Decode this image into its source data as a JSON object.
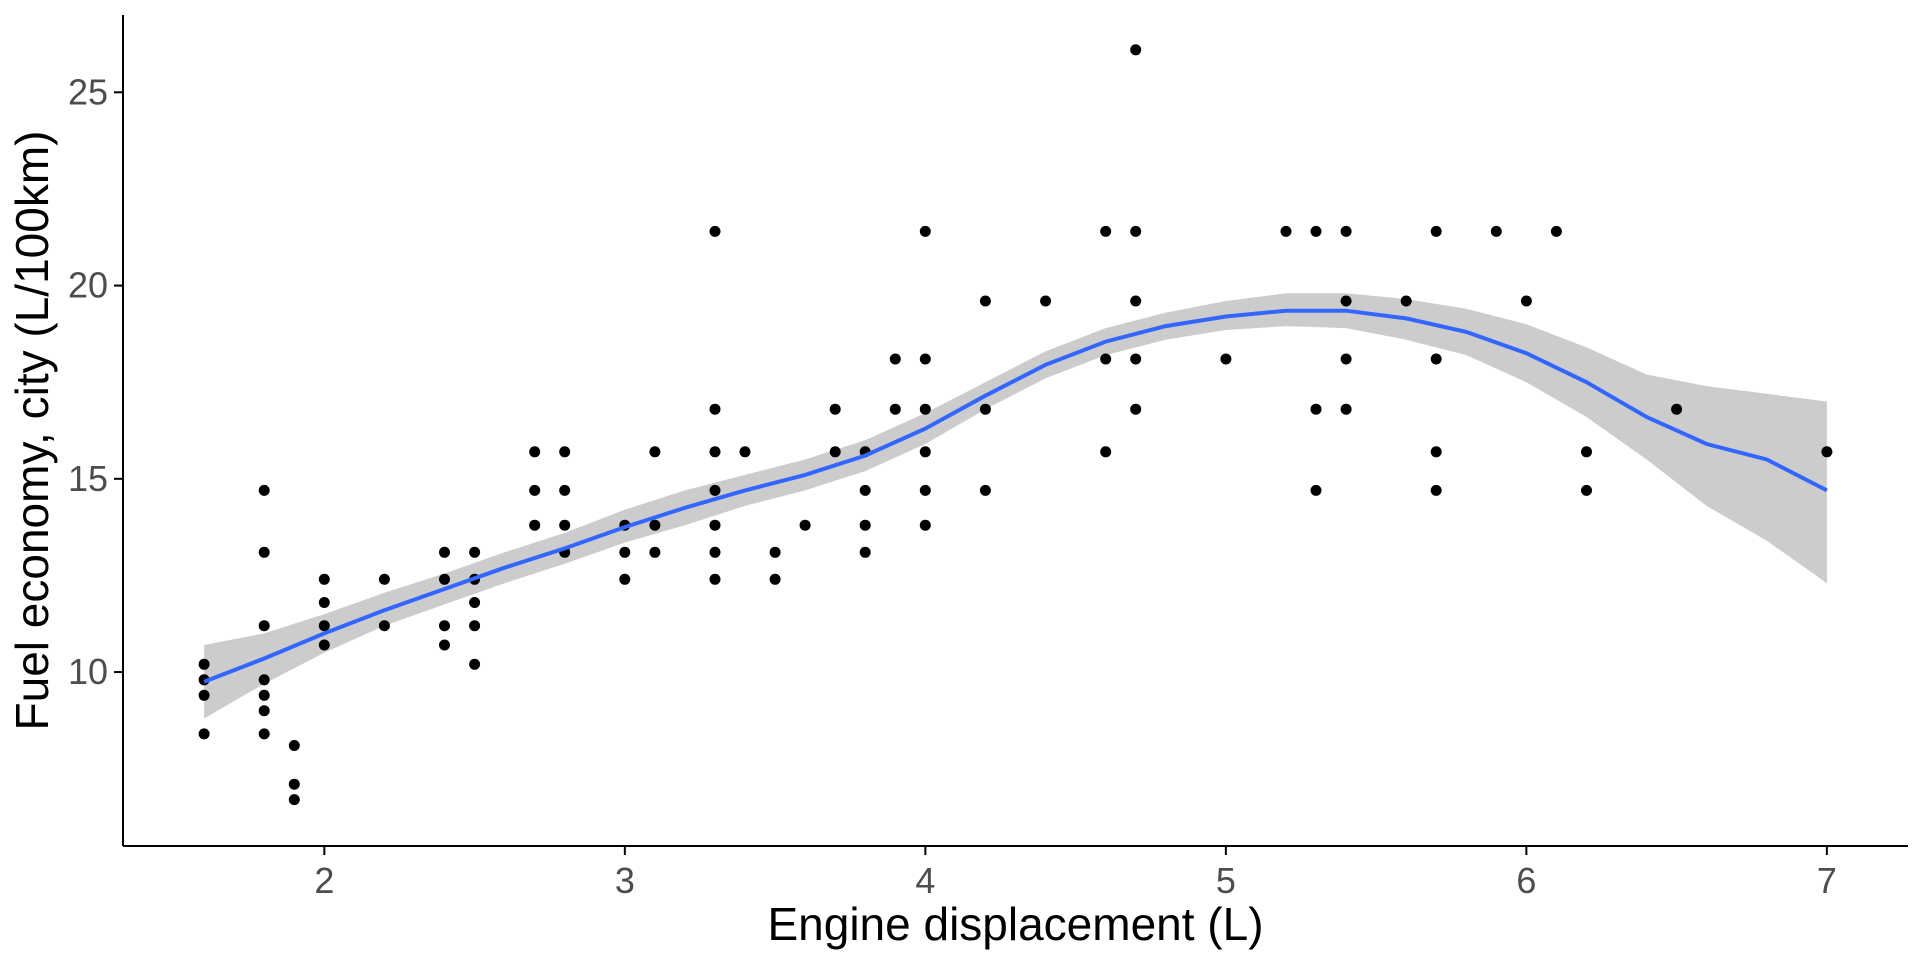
{
  "chart_data": {
    "type": "scatter",
    "title": "",
    "xlabel": "Engine displacement (L)",
    "ylabel": "Fuel economy, city (L/100km)",
    "xlim": [
      1.33,
      7.27
    ],
    "ylim": [
      5.5,
      27.0
    ],
    "x_ticks": [
      2,
      3,
      4,
      5,
      6,
      7
    ],
    "y_ticks": [
      10,
      15,
      20,
      25
    ],
    "grid": false,
    "legend": "none",
    "colors": {
      "points": "#000000",
      "smooth_line": "#3366FF",
      "ribbon": "#CCCCCC",
      "axis": "#000000",
      "tick_text": "#4D4D4D"
    },
    "points": [
      [
        1.6,
        8.4
      ],
      [
        1.6,
        9.4
      ],
      [
        1.6,
        9.8
      ],
      [
        1.6,
        10.2
      ],
      [
        1.8,
        8.4
      ],
      [
        1.8,
        9.0
      ],
      [
        1.8,
        9.4
      ],
      [
        1.8,
        9.8
      ],
      [
        1.8,
        11.2
      ],
      [
        1.8,
        13.1
      ],
      [
        1.8,
        14.7
      ],
      [
        1.9,
        6.7
      ],
      [
        1.9,
        7.1
      ],
      [
        1.9,
        8.1
      ],
      [
        2.0,
        10.7
      ],
      [
        2.0,
        11.2
      ],
      [
        2.0,
        11.8
      ],
      [
        2.0,
        12.4
      ],
      [
        2.2,
        11.2
      ],
      [
        2.2,
        12.4
      ],
      [
        2.4,
        10.7
      ],
      [
        2.4,
        11.2
      ],
      [
        2.4,
        12.4
      ],
      [
        2.4,
        13.1
      ],
      [
        2.5,
        10.2
      ],
      [
        2.5,
        11.2
      ],
      [
        2.5,
        11.8
      ],
      [
        2.5,
        12.4
      ],
      [
        2.5,
        13.1
      ],
      [
        2.7,
        13.8
      ],
      [
        2.7,
        14.7
      ],
      [
        2.7,
        15.7
      ],
      [
        2.8,
        13.1
      ],
      [
        2.8,
        13.8
      ],
      [
        2.8,
        14.7
      ],
      [
        2.8,
        15.7
      ],
      [
        3.0,
        12.4
      ],
      [
        3.0,
        13.1
      ],
      [
        3.0,
        13.8
      ],
      [
        3.1,
        13.1
      ],
      [
        3.1,
        13.8
      ],
      [
        3.1,
        15.7
      ],
      [
        3.3,
        12.4
      ],
      [
        3.3,
        13.1
      ],
      [
        3.3,
        13.8
      ],
      [
        3.3,
        14.7
      ],
      [
        3.3,
        15.7
      ],
      [
        3.3,
        16.8
      ],
      [
        3.3,
        21.4
      ],
      [
        3.4,
        15.7
      ],
      [
        3.5,
        12.4
      ],
      [
        3.5,
        13.1
      ],
      [
        3.6,
        13.8
      ],
      [
        3.7,
        15.7
      ],
      [
        3.7,
        16.8
      ],
      [
        3.8,
        13.1
      ],
      [
        3.8,
        13.8
      ],
      [
        3.8,
        14.7
      ],
      [
        3.8,
        15.7
      ],
      [
        3.9,
        16.8
      ],
      [
        3.9,
        18.1
      ],
      [
        4.0,
        13.8
      ],
      [
        4.0,
        14.7
      ],
      [
        4.0,
        15.7
      ],
      [
        4.0,
        16.8
      ],
      [
        4.0,
        18.1
      ],
      [
        4.0,
        21.4
      ],
      [
        4.2,
        14.7
      ],
      [
        4.2,
        16.8
      ],
      [
        4.2,
        19.6
      ],
      [
        4.4,
        19.6
      ],
      [
        4.6,
        15.7
      ],
      [
        4.6,
        18.1
      ],
      [
        4.6,
        21.4
      ],
      [
        4.7,
        16.8
      ],
      [
        4.7,
        18.1
      ],
      [
        4.7,
        19.6
      ],
      [
        4.7,
        21.4
      ],
      [
        4.7,
        26.1
      ],
      [
        5.0,
        18.1
      ],
      [
        5.2,
        21.4
      ],
      [
        5.3,
        14.7
      ],
      [
        5.3,
        16.8
      ],
      [
        5.3,
        21.4
      ],
      [
        5.4,
        16.8
      ],
      [
        5.4,
        18.1
      ],
      [
        5.4,
        19.6
      ],
      [
        5.4,
        21.4
      ],
      [
        5.6,
        19.6
      ],
      [
        5.7,
        14.7
      ],
      [
        5.7,
        15.7
      ],
      [
        5.7,
        18.1
      ],
      [
        5.7,
        21.4
      ],
      [
        5.9,
        21.4
      ],
      [
        6.0,
        19.6
      ],
      [
        6.1,
        21.4
      ],
      [
        6.2,
        14.7
      ],
      [
        6.2,
        15.7
      ],
      [
        6.5,
        16.8
      ],
      [
        7.0,
        15.7
      ]
    ],
    "smooth": [
      [
        1.6,
        9.75,
        8.8,
        10.7
      ],
      [
        1.8,
        10.35,
        9.7,
        11.0
      ],
      [
        2.0,
        11.0,
        10.5,
        11.5
      ],
      [
        2.2,
        11.6,
        11.2,
        12.05
      ],
      [
        2.4,
        12.15,
        11.75,
        12.55
      ],
      [
        2.6,
        12.7,
        12.3,
        13.1
      ],
      [
        2.8,
        13.2,
        12.8,
        13.6
      ],
      [
        3.0,
        13.75,
        13.35,
        14.2
      ],
      [
        3.2,
        14.25,
        13.8,
        14.7
      ],
      [
        3.4,
        14.7,
        14.3,
        15.1
      ],
      [
        3.6,
        15.1,
        14.7,
        15.5
      ],
      [
        3.8,
        15.6,
        15.2,
        16.0
      ],
      [
        4.0,
        16.3,
        15.9,
        16.7
      ],
      [
        4.2,
        17.15,
        16.8,
        17.5
      ],
      [
        4.4,
        17.95,
        17.6,
        18.3
      ],
      [
        4.6,
        18.55,
        18.2,
        18.9
      ],
      [
        4.8,
        18.95,
        18.6,
        19.3
      ],
      [
        5.0,
        19.2,
        18.85,
        19.6
      ],
      [
        5.2,
        19.35,
        18.95,
        19.8
      ],
      [
        5.4,
        19.35,
        18.9,
        19.8
      ],
      [
        5.6,
        19.15,
        18.6,
        19.65
      ],
      [
        5.8,
        18.8,
        18.2,
        19.4
      ],
      [
        6.0,
        18.25,
        17.5,
        19.0
      ],
      [
        6.2,
        17.5,
        16.6,
        18.4
      ],
      [
        6.4,
        16.6,
        15.5,
        17.7
      ],
      [
        6.6,
        15.9,
        14.3,
        17.4
      ],
      [
        6.8,
        15.5,
        13.4,
        17.2
      ],
      [
        7.0,
        14.7,
        12.3,
        17.0
      ]
    ]
  }
}
